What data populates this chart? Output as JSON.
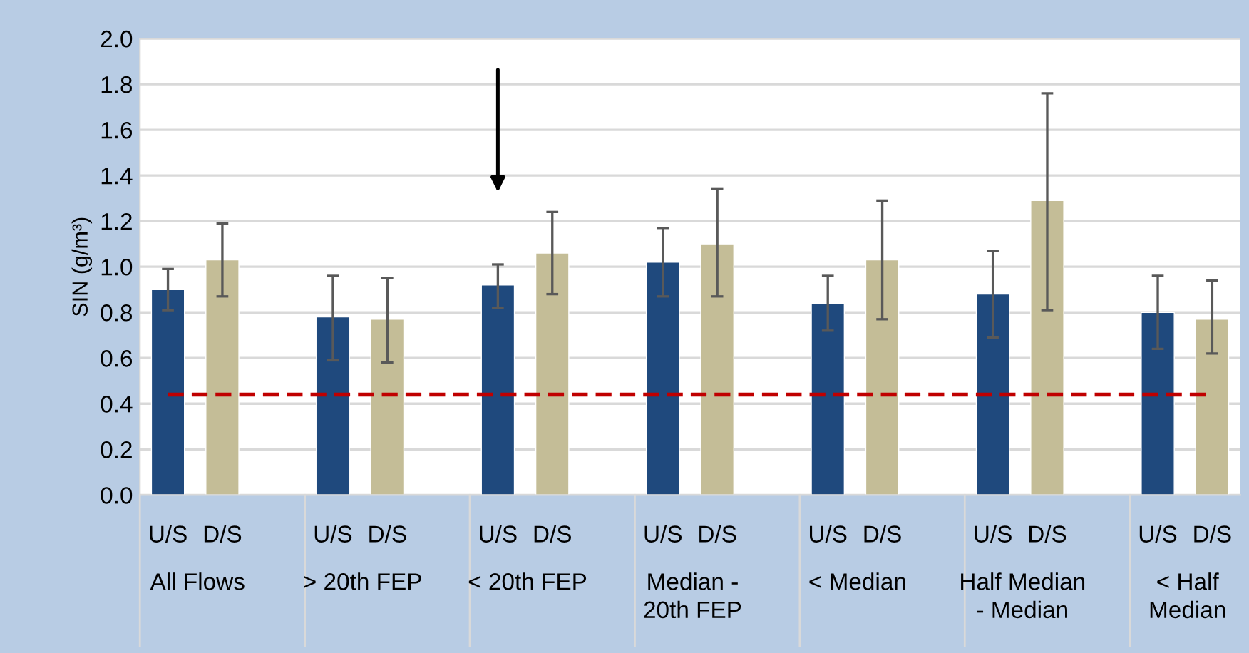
{
  "chart_data": {
    "type": "bar",
    "ylabel": "SIN (g/m³)",
    "categories": [
      "All Flows",
      "> 20th FEP",
      "< 20th FEP",
      "Median - 20th FEP",
      "< Median",
      "Half Median - Median",
      "< Half Median"
    ],
    "series": [
      {
        "name": "U/S",
        "color": "#1f497d",
        "values": [
          0.9,
          0.78,
          0.92,
          1.02,
          0.84,
          0.88,
          0.8
        ],
        "errors": [
          [
            0.81,
            0.99
          ],
          [
            0.59,
            0.96
          ],
          [
            0.82,
            1.01
          ],
          [
            0.87,
            1.17
          ],
          [
            0.72,
            0.96
          ],
          [
            0.69,
            1.07
          ],
          [
            0.64,
            0.96
          ]
        ]
      },
      {
        "name": "D/S",
        "color": "#c4bd97",
        "values": [
          1.03,
          0.77,
          1.06,
          1.1,
          1.03,
          1.29,
          0.77
        ],
        "errors": [
          [
            0.87,
            1.19
          ],
          [
            0.58,
            0.95
          ],
          [
            0.88,
            1.24
          ],
          [
            0.87,
            1.34
          ],
          [
            0.77,
            1.29
          ],
          [
            0.81,
            1.76
          ],
          [
            0.62,
            0.94
          ]
        ]
      }
    ],
    "ylim": [
      0,
      2.0
    ],
    "yticks": [
      {
        "value": 0,
        "label": "0.0"
      },
      {
        "value": 0.2,
        "label": "0.2"
      },
      {
        "value": 0.4,
        "label": "0.4"
      },
      {
        "value": 0.6,
        "label": "0.6"
      },
      {
        "value": 0.8,
        "label": "0.8"
      },
      {
        "value": 1.0,
        "label": "1.0"
      },
      {
        "value": 1.2,
        "label": "1.2"
      },
      {
        "value": 1.4,
        "label": "1.4"
      },
      {
        "value": 1.6,
        "label": "1.6"
      },
      {
        "value": 1.8,
        "label": "1.8"
      },
      {
        "value": 2.0,
        "label": "2.0"
      }
    ],
    "grid": "y",
    "ref_lines": [
      {
        "axis": "y",
        "value": 0.44,
        "color": "#c00000",
        "line_style": "dashed"
      }
    ]
  }
}
